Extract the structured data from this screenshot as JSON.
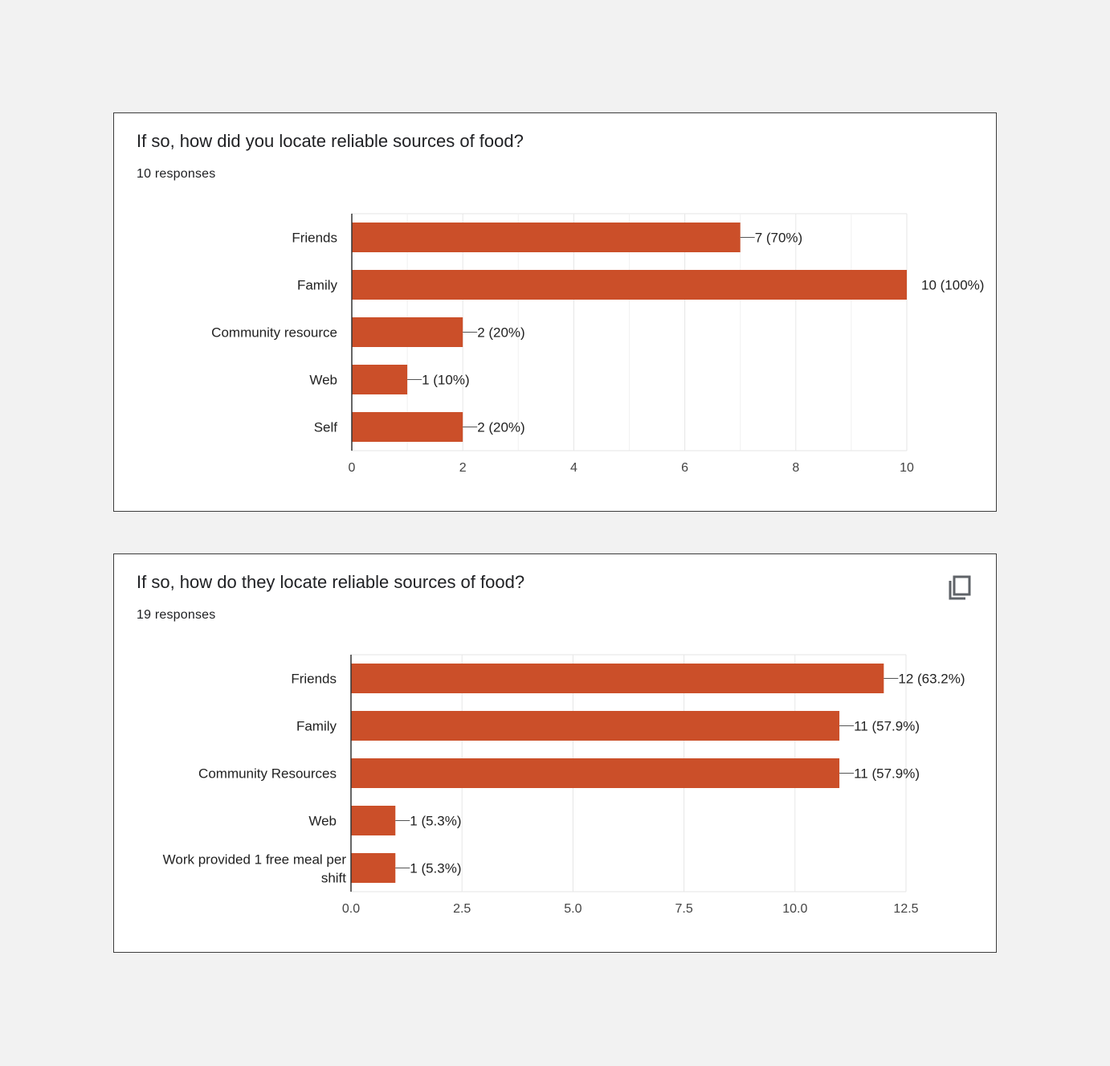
{
  "colors": {
    "bar": "#cb4f29",
    "grid": "#e6e6e6",
    "axis": "#333333",
    "card_bg": "#ffffff",
    "page_bg": "#f2f2f2"
  },
  "card1": {
    "title": "If so, how did you locate reliable sources of food?",
    "subtitle": "10 responses"
  },
  "card2": {
    "title": "If so, how do they locate reliable sources of food?",
    "subtitle": "19 responses",
    "copy_icon": "copy-icon"
  },
  "chart_data": [
    {
      "type": "bar",
      "orientation": "horizontal",
      "categories": [
        "Friends",
        "Family",
        "Community resource",
        "Web",
        "Self"
      ],
      "values": [
        7,
        10,
        2,
        1,
        2
      ],
      "data_labels": [
        "7 (70%)",
        "10 (100%)",
        "2 (20%)",
        "1 (10%)",
        "2 (20%)"
      ],
      "xlim": [
        0,
        10
      ],
      "ticks": [
        "0",
        "2",
        "4",
        "6",
        "8",
        "10"
      ],
      "minor_grid": true
    },
    {
      "type": "bar",
      "orientation": "horizontal",
      "categories": [
        "Friends",
        "Family",
        "Community Resources",
        "Web",
        "Work provided 1 free meal per shift"
      ],
      "values": [
        12,
        11,
        11,
        1,
        1
      ],
      "data_labels": [
        "12 (63.2%)",
        "11 (57.9%)",
        "11 (57.9%)",
        "1 (5.3%)",
        "1 (5.3%)"
      ],
      "xlim": [
        0,
        12.5
      ],
      "ticks": [
        "0.0",
        "2.5",
        "5.0",
        "7.5",
        "10.0",
        "12.5"
      ],
      "minor_grid": false
    }
  ]
}
